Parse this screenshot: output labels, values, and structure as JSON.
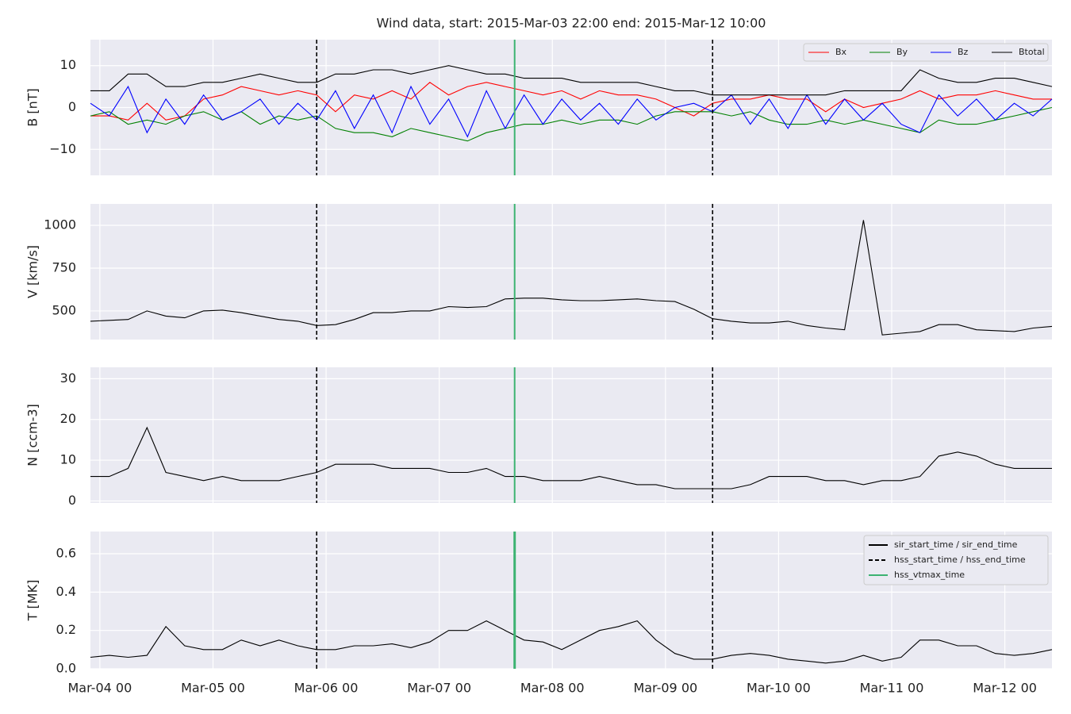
{
  "title": "Wind data, start: 2015-Mar-03 22:00  end: 2015-Mar-12 10:00",
  "x_axis": {
    "xlim": [
      "Mar-03 22",
      "Mar-12 10"
    ],
    "xticks": [
      "Mar-04 00",
      "Mar-05 00",
      "Mar-06 00",
      "Mar-07 00",
      "Mar-08 00",
      "Mar-09 00",
      "Mar-10 00",
      "Mar-11 00",
      "Mar-12 00"
    ],
    "x": [
      "Mar-03 22",
      "Mar-04 02",
      "Mar-04 06",
      "Mar-04 10",
      "Mar-04 14",
      "Mar-04 18",
      "Mar-04 22",
      "Mar-05 02",
      "Mar-05 06",
      "Mar-05 10",
      "Mar-05 14",
      "Mar-05 18",
      "Mar-05 22",
      "Mar-06 02",
      "Mar-06 06",
      "Mar-06 10",
      "Mar-06 14",
      "Mar-06 18",
      "Mar-06 22",
      "Mar-07 02",
      "Mar-07 06",
      "Mar-07 10",
      "Mar-07 14",
      "Mar-07 18",
      "Mar-07 22",
      "Mar-08 02",
      "Mar-08 06",
      "Mar-08 10",
      "Mar-08 14",
      "Mar-08 18",
      "Mar-08 22",
      "Mar-09 02",
      "Mar-09 06",
      "Mar-09 10",
      "Mar-09 14",
      "Mar-09 18",
      "Mar-09 22",
      "Mar-10 02",
      "Mar-10 06",
      "Mar-10 10",
      "Mar-10 14",
      "Mar-10 18",
      "Mar-10 22",
      "Mar-11 02",
      "Mar-11 06",
      "Mar-11 10",
      "Mar-11 14",
      "Mar-11 18",
      "Mar-11 22",
      "Mar-12 02",
      "Mar-12 06",
      "Mar-12 10"
    ]
  },
  "events": [
    {
      "name": "sir_start_time / sir_end_time",
      "color": "#000000",
      "style": "solid",
      "x": []
    },
    {
      "name": "hss_start_time / hss_end_time",
      "color": "#000000",
      "style": "dashed",
      "x": [
        "Mar-05 22",
        "Mar-09 10"
      ]
    },
    {
      "name": "hss_vtmax_time",
      "color": "#3cb371",
      "style": "solid",
      "x": [
        "Mar-07 16"
      ]
    }
  ],
  "chart_data": [
    {
      "type": "line",
      "ylabel": "B [nT]",
      "ylim": [
        -16.2,
        16.2
      ],
      "yticks": [
        {
          "value": -10,
          "label": "−10"
        },
        0,
        10
      ],
      "grid": true,
      "legend": "upper right",
      "series": [
        {
          "name": "Bx",
          "color": "#ff0000",
          "values": [
            -2,
            -2,
            -3,
            1,
            -3,
            -2,
            2,
            3,
            5,
            4,
            3,
            4,
            3,
            -1,
            3,
            2,
            4,
            2,
            6,
            3,
            5,
            6,
            5,
            4,
            3,
            4,
            2,
            4,
            3,
            3,
            2,
            0,
            -2,
            1,
            2,
            2,
            3,
            2,
            2,
            -1,
            2,
            0,
            1,
            2,
            4,
            2,
            3,
            3,
            4,
            3,
            2,
            2
          ]
        },
        {
          "name": "By",
          "color": "#008000",
          "values": [
            -2,
            -1,
            -4,
            -3,
            -4,
            -2,
            -1,
            -3,
            -1,
            -4,
            -2,
            -3,
            -2,
            -5,
            -6,
            -6,
            -7,
            -5,
            -6,
            -7,
            -8,
            -6,
            -5,
            -4,
            -4,
            -3,
            -4,
            -3,
            -3,
            -4,
            -2,
            -1,
            -1,
            -1,
            -2,
            -1,
            -3,
            -4,
            -4,
            -3,
            -4,
            -3,
            -4,
            -5,
            -6,
            -3,
            -4,
            -4,
            -3,
            -2,
            -1,
            0
          ]
        },
        {
          "name": "Bz",
          "color": "#0000ff",
          "values": [
            1,
            -2,
            5,
            -6,
            2,
            -4,
            3,
            -3,
            -1,
            2,
            -4,
            1,
            -3,
            4,
            -5,
            3,
            -6,
            5,
            -4,
            2,
            -7,
            4,
            -5,
            3,
            -4,
            2,
            -3,
            1,
            -4,
            2,
            -3,
            0,
            1,
            -1,
            3,
            -4,
            2,
            -5,
            3,
            -4,
            2,
            -3,
            1,
            -4,
            -6,
            3,
            -2,
            2,
            -3,
            1,
            -2,
            2
          ]
        },
        {
          "name": "Btotal",
          "color": "#000000",
          "values": [
            4,
            4,
            8,
            8,
            5,
            5,
            6,
            6,
            7,
            8,
            7,
            6,
            6,
            8,
            8,
            9,
            9,
            8,
            9,
            10,
            9,
            8,
            8,
            7,
            7,
            7,
            6,
            6,
            6,
            6,
            5,
            4,
            4,
            3,
            3,
            3,
            3,
            3,
            3,
            3,
            4,
            4,
            4,
            4,
            9,
            7,
            6,
            6,
            7,
            7,
            6,
            5
          ]
        }
      ]
    },
    {
      "type": "line",
      "ylabel": "V [km/s]",
      "ylim": [
        333,
        1125
      ],
      "yticks": [
        500,
        750,
        1000
      ],
      "grid": true,
      "series": [
        {
          "color": "#000000",
          "values": [
            440,
            445,
            450,
            500,
            470,
            460,
            500,
            505,
            490,
            470,
            450,
            440,
            415,
            420,
            450,
            490,
            490,
            500,
            500,
            525,
            520,
            525,
            570,
            575,
            575,
            565,
            560,
            560,
            565,
            570,
            560,
            555,
            510,
            455,
            440,
            430,
            430,
            440,
            415,
            400,
            390,
            1030,
            360,
            370,
            380,
            420,
            420,
            390,
            385,
            380,
            400,
            410
          ]
        }
      ]
    },
    {
      "type": "line",
      "ylabel": "N [ccm-3]",
      "ylim": [
        -0.5,
        32.8
      ],
      "yticks": [
        0,
        10,
        20,
        30
      ],
      "grid": true,
      "series": [
        {
          "color": "#000000",
          "values": [
            6,
            6,
            8,
            18,
            7,
            6,
            5,
            6,
            5,
            5,
            5,
            6,
            7,
            9,
            9,
            9,
            8,
            8,
            8,
            7,
            7,
            8,
            6,
            6,
            5,
            5,
            5,
            6,
            5,
            4,
            4,
            3,
            3,
            3,
            3,
            4,
            6,
            6,
            6,
            5,
            5,
            4,
            5,
            5,
            6,
            11,
            12,
            11,
            9,
            8,
            8,
            8
          ]
        }
      ]
    },
    {
      "type": "line",
      "ylabel": "T [MK]",
      "ylim": [
        0,
        0.716
      ],
      "yticks": [
        {
          "value": 0,
          "label": "0.0"
        },
        0.2,
        0.4,
        0.6
      ],
      "grid": true,
      "legend": "upper right",
      "series": [
        {
          "color": "#000000",
          "values": [
            0.06,
            0.07,
            0.06,
            0.07,
            0.22,
            0.12,
            0.1,
            0.1,
            0.15,
            0.12,
            0.15,
            0.12,
            0.1,
            0.1,
            0.12,
            0.12,
            0.13,
            0.11,
            0.14,
            0.2,
            0.2,
            0.25,
            0.2,
            0.15,
            0.14,
            0.1,
            0.15,
            0.2,
            0.22,
            0.25,
            0.15,
            0.08,
            0.05,
            0.05,
            0.07,
            0.08,
            0.07,
            0.05,
            0.04,
            0.03,
            0.04,
            0.07,
            0.04,
            0.06,
            0.15,
            0.15,
            0.12,
            0.12,
            0.08,
            0.07,
            0.08,
            0.1
          ]
        }
      ]
    }
  ]
}
